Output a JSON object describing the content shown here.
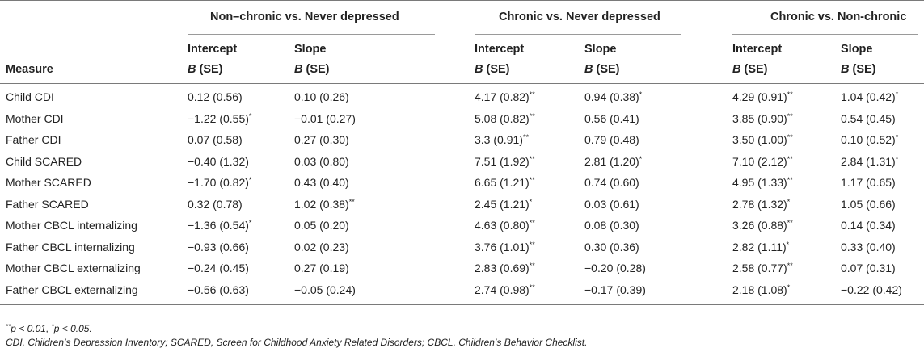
{
  "table": {
    "groups": [
      {
        "title": "Non–chronic vs. Never depressed"
      },
      {
        "title": "Chronic vs. Never depressed"
      },
      {
        "title": "Chronic vs. Non-chronic"
      }
    ],
    "measure_header": "Measure",
    "intercept_label": "Intercept",
    "slope_label": "Slope",
    "b_label": "B",
    "se_label": " (SE)",
    "rows": [
      {
        "measure": "Child CDI",
        "cells": [
          {
            "v": "0.12 (0.56)",
            "sig": ""
          },
          {
            "v": "0.10 (0.26)",
            "sig": ""
          },
          {
            "v": "4.17 (0.82)",
            "sig": "**"
          },
          {
            "v": "0.94 (0.38)",
            "sig": "*"
          },
          {
            "v": "4.29 (0.91)",
            "sig": "**"
          },
          {
            "v": "1.04 (0.42)",
            "sig": "*"
          }
        ]
      },
      {
        "measure": "Mother CDI",
        "cells": [
          {
            "v": "−1.22 (0.55)",
            "sig": "*"
          },
          {
            "v": "−0.01 (0.27)",
            "sig": ""
          },
          {
            "v": "5.08 (0.82)",
            "sig": "**"
          },
          {
            "v": "0.56 (0.41)",
            "sig": ""
          },
          {
            "v": "3.85 (0.90)",
            "sig": "**"
          },
          {
            "v": "0.54 (0.45)",
            "sig": ""
          }
        ]
      },
      {
        "measure": "Father CDI",
        "cells": [
          {
            "v": "0.07 (0.58)",
            "sig": ""
          },
          {
            "v": "0.27 (0.30)",
            "sig": ""
          },
          {
            "v": "3.3 (0.91)",
            "sig": "**"
          },
          {
            "v": "0.79 (0.48)",
            "sig": ""
          },
          {
            "v": "3.50 (1.00)",
            "sig": "**"
          },
          {
            "v": "0.10 (0.52)",
            "sig": "*"
          }
        ]
      },
      {
        "measure": "Child SCARED",
        "cells": [
          {
            "v": "−0.40 (1.32)",
            "sig": ""
          },
          {
            "v": "0.03 (0.80)",
            "sig": ""
          },
          {
            "v": "7.51 (1.92)",
            "sig": "**"
          },
          {
            "v": "2.81 (1.20)",
            "sig": "*"
          },
          {
            "v": "7.10 (2.12)",
            "sig": "**"
          },
          {
            "v": "2.84 (1.31)",
            "sig": "*"
          }
        ]
      },
      {
        "measure": "Mother SCARED",
        "cells": [
          {
            "v": "−1.70 (0.82)",
            "sig": "*"
          },
          {
            "v": "0.43 (0.40)",
            "sig": ""
          },
          {
            "v": "6.65 (1.21)",
            "sig": "**"
          },
          {
            "v": "0.74 (0.60)",
            "sig": ""
          },
          {
            "v": "4.95 (1.33)",
            "sig": "**"
          },
          {
            "v": "1.17 (0.65)",
            "sig": ""
          }
        ]
      },
      {
        "measure": "Father SCARED",
        "cells": [
          {
            "v": "0.32 (0.78)",
            "sig": ""
          },
          {
            "v": "1.02 (0.38)",
            "sig": "**"
          },
          {
            "v": "2.45 (1.21)",
            "sig": "*"
          },
          {
            "v": "0.03 (0.61)",
            "sig": ""
          },
          {
            "v": "2.78 (1.32)",
            "sig": "*"
          },
          {
            "v": "1.05 (0.66)",
            "sig": ""
          }
        ]
      },
      {
        "measure": "Mother CBCL internalizing",
        "cells": [
          {
            "v": "−1.36 (0.54)",
            "sig": "*"
          },
          {
            "v": "0.05 (0.20)",
            "sig": ""
          },
          {
            "v": "4.63 (0.80)",
            "sig": "**"
          },
          {
            "v": "0.08 (0.30)",
            "sig": ""
          },
          {
            "v": "3.26 (0.88)",
            "sig": "**"
          },
          {
            "v": "0.14 (0.34)",
            "sig": ""
          }
        ]
      },
      {
        "measure": "Father CBCL internalizing",
        "cells": [
          {
            "v": "−0.93 (0.66)",
            "sig": ""
          },
          {
            "v": "0.02 (0.23)",
            "sig": ""
          },
          {
            "v": "3.76 (1.01)",
            "sig": "**"
          },
          {
            "v": "0.30 (0.36)",
            "sig": ""
          },
          {
            "v": "2.82 (1.11)",
            "sig": "*"
          },
          {
            "v": "0.33 (0.40)",
            "sig": ""
          }
        ]
      },
      {
        "measure": "Mother CBCL externalizing",
        "cells": [
          {
            "v": "−0.24 (0.45)",
            "sig": ""
          },
          {
            "v": "0.27 (0.19)",
            "sig": ""
          },
          {
            "v": "2.83 (0.69)",
            "sig": "**"
          },
          {
            "v": "−0.20 (0.28)",
            "sig": ""
          },
          {
            "v": "2.58 (0.77)",
            "sig": "**"
          },
          {
            "v": "0.07 (0.31)",
            "sig": ""
          }
        ]
      },
      {
        "measure": "Father CBCL externalizing",
        "cells": [
          {
            "v": "−0.56 (0.63)",
            "sig": ""
          },
          {
            "v": "−0.05 (0.24)",
            "sig": ""
          },
          {
            "v": "2.74 (0.98)",
            "sig": "**"
          },
          {
            "v": "−0.17 (0.39)",
            "sig": ""
          },
          {
            "v": "2.18 (1.08)",
            "sig": "*"
          },
          {
            "v": "−0.22 (0.42)",
            "sig": ""
          }
        ]
      }
    ]
  },
  "notes": {
    "sig_double": "**",
    "sig_double_text": "p < 0.01, ",
    "sig_single": "*",
    "sig_single_text": "p < 0.05.",
    "abbreviations": "CDI, Children’s Depression Inventory; SCARED, Screen for Childhood Anxiety Related Disorders; CBCL, Children’s Behavior Checklist."
  }
}
